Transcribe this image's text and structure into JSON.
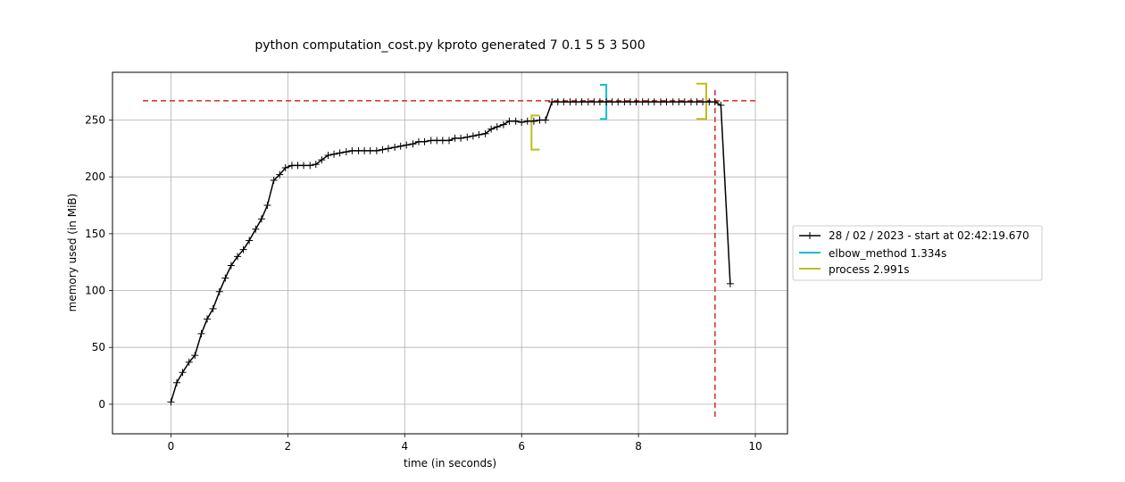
{
  "chart_data": {
    "type": "line",
    "title": "python computation_cost.py kproto generated 7 0.1 5 5 3 500",
    "xlabel": "time (in seconds)",
    "ylabel": "memory used (in MiB)",
    "xlim": [
      -1.0,
      10.55
    ],
    "ylim": [
      -26,
      292
    ],
    "xticks": [
      0,
      2,
      4,
      6,
      8,
      10
    ],
    "yticks": [
      0,
      50,
      100,
      150,
      200,
      250
    ],
    "xtick_labels": [
      "0",
      "2",
      "4",
      "6",
      "8",
      "10"
    ],
    "ytick_labels": [
      "0",
      "50",
      "100",
      "150",
      "200",
      "250"
    ],
    "grid": true,
    "legend_position": "center-right, outside plot",
    "series": [
      {
        "name": "28 / 02 / 2023 - start at 02:42:19.670",
        "color": "#000000",
        "marker": "plus",
        "x": [
          0.0,
          0.1,
          0.2,
          0.31,
          0.41,
          0.52,
          0.62,
          0.72,
          0.83,
          0.93,
          1.03,
          1.14,
          1.24,
          1.34,
          1.45,
          1.55,
          1.65,
          1.76,
          1.86,
          1.96,
          2.07,
          2.17,
          2.27,
          2.38,
          2.48,
          2.58,
          2.69,
          2.79,
          2.89,
          3.0,
          3.1,
          3.21,
          3.31,
          3.41,
          3.52,
          3.62,
          3.72,
          3.83,
          3.93,
          4.03,
          4.14,
          4.24,
          4.34,
          4.45,
          4.55,
          4.65,
          4.76,
          4.86,
          4.96,
          5.07,
          5.17,
          5.27,
          5.38,
          5.48,
          5.58,
          5.69,
          5.79,
          5.9,
          6.0,
          6.1,
          6.21,
          6.31,
          6.41,
          6.52,
          6.62,
          6.72,
          6.83,
          6.93,
          7.03,
          7.14,
          7.24,
          7.34,
          7.45,
          7.55,
          7.65,
          7.76,
          7.86,
          7.96,
          8.07,
          8.17,
          8.27,
          8.38,
          8.48,
          8.59,
          8.69,
          8.79,
          8.9,
          9.0,
          9.1,
          9.21,
          9.31,
          9.41,
          9.57
        ],
        "y": [
          2,
          19,
          28,
          37,
          43,
          62,
          75,
          84,
          99,
          111,
          122,
          130,
          136,
          144,
          154,
          163,
          175,
          197,
          202,
          208,
          210,
          210,
          210,
          210,
          211,
          215,
          219,
          220,
          221,
          222,
          223,
          223,
          223,
          223,
          223,
          224,
          225,
          226,
          227,
          228,
          229,
          231,
          231,
          232,
          232,
          232,
          232,
          234,
          234,
          235,
          236,
          237,
          238,
          242,
          244,
          246,
          249,
          249,
          248,
          249,
          249,
          250,
          250,
          266,
          266,
          266,
          266,
          266,
          266,
          266,
          266,
          266,
          266,
          266,
          266,
          266,
          266,
          266,
          266,
          266,
          266,
          266,
          266,
          266,
          266,
          266,
          266,
          266,
          266,
          266,
          266,
          263,
          106
        ]
      },
      {
        "name": "elbow_method 1.334s",
        "color": "#17becf",
        "bracket": {
          "x_start": 7.34,
          "x_end": 7.45,
          "y_low": 251,
          "y_high": 281
        }
      },
      {
        "name": "process 2.991s",
        "color": "#bcbd22",
        "brackets": [
          {
            "side": "open",
            "x": 6.17,
            "x_tick_end": 6.31,
            "y_low": 224,
            "y_high": 254
          },
          {
            "side": "close",
            "x": 9.16,
            "x_tick_start": 8.99,
            "y_low": 251,
            "y_high": 282
          }
        ]
      }
    ],
    "reference_lines": [
      {
        "orientation": "horizontal",
        "y": 267,
        "x_from": -0.48,
        "x_to": 10.05,
        "color": "#d62728",
        "style": "dashed"
      },
      {
        "orientation": "vertical",
        "x": 9.31,
        "y_from": -11,
        "y_to": 278,
        "color": "#d62728",
        "style": "dashed"
      }
    ]
  }
}
